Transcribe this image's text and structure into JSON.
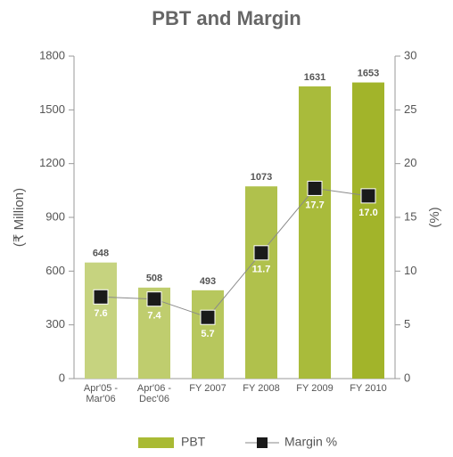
{
  "chart_data": {
    "type": "bar_line",
    "title": "PBT and Margin",
    "y_label": "(₹ Million)",
    "y2_label": "(%)",
    "categories": [
      "Apr'05 -\nMar'06",
      "Apr'06 -\nDec'06",
      "FY 2007",
      "FY 2008",
      "FY 2009",
      "FY 2010"
    ],
    "ylim": [
      0,
      1800
    ],
    "yticks": [
      0,
      300,
      600,
      900,
      1200,
      1500,
      1800
    ],
    "y2lim": [
      0,
      30
    ],
    "y2ticks": [
      0,
      5,
      10,
      15,
      20,
      25,
      30
    ],
    "series": [
      {
        "name": "PBT",
        "type": "bar",
        "color": "#a9ba34",
        "colors": [
          "#c6d37f",
          "#bfcd6e",
          "#b7c75d",
          "#b0c14c",
          "#a9bb3b",
          "#a2b42a"
        ],
        "values": [
          648,
          508,
          493,
          1073,
          1631,
          1653
        ]
      },
      {
        "name": "Margin %",
        "type": "line",
        "axis": "y2",
        "color": "#1a1a1a",
        "line_color": "#8a8a8a",
        "values": [
          7.6,
          7.4,
          5.7,
          11.7,
          17.7,
          17.0
        ],
        "value_labels": [
          "7.6",
          "7.4",
          "5.7",
          "11.7",
          "17.7",
          "17.0"
        ]
      }
    ],
    "legend": "bottom"
  }
}
